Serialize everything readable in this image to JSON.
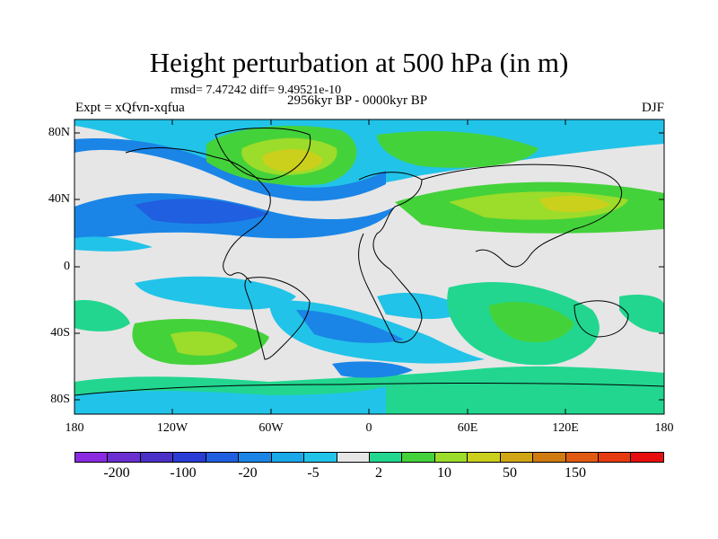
{
  "title": "Height perturbation at 500 hPa (in m)",
  "stats": "rmsd= 7.47242 diff= 9.49521e-10",
  "expt": "Expt = xQfvn-xqfua",
  "period": "2956kyr BP - 0000kyr BP",
  "season": "DJF",
  "yaxis": [
    "80N",
    "40N",
    "0",
    "40S",
    "80S"
  ],
  "xaxis": [
    "180",
    "120W",
    "60W",
    "0",
    "60E",
    "120E",
    "180"
  ],
  "colorbar": {
    "colors": [
      "#8a2be2",
      "#6a2fd0",
      "#4b30c8",
      "#2a3cd6",
      "#1f5fe0",
      "#1a85e6",
      "#1aa8e8",
      "#22c3e8",
      "#e6e6e6",
      "#22d690",
      "#44d23a",
      "#9cdc2a",
      "#cbd01c",
      "#d0a614",
      "#d07a10",
      "#e05a12",
      "#e63a10",
      "#e60e0e"
    ],
    "labels": [
      "-200",
      "-100",
      "-20",
      "-5",
      "2",
      "10",
      "50",
      "150"
    ]
  },
  "palette": {
    "neutral": "#e6e6e6",
    "lightblue": "#22c3e8",
    "blue": "#1a85e6",
    "darkblue": "#1f5fe0",
    "green": "#22d690",
    "lime": "#44d23a",
    "yellowgreen": "#9cdc2a",
    "yellow": "#cbd01c"
  }
}
